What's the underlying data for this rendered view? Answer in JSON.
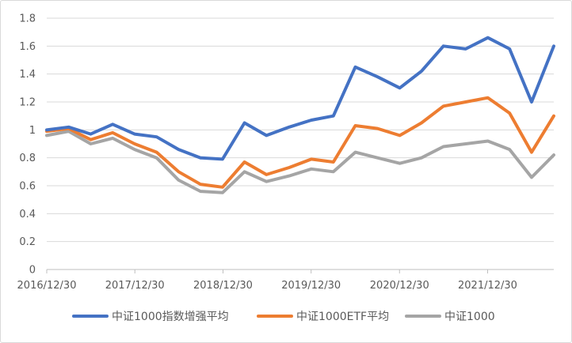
{
  "chart_data": {
    "type": "line",
    "title": "",
    "xlabel": "",
    "ylabel": "",
    "ylim": [
      0,
      1.8
    ],
    "yticks": [
      "0",
      "0.2",
      "0.4",
      "0.6",
      "0.8",
      "1",
      "1.2",
      "1.4",
      "1.6",
      "1.8"
    ],
    "xlim": [
      "2016-12-30",
      "2022-09-30"
    ],
    "xticks": [
      "2016/12/30",
      "2017/12/30",
      "2018/12/30",
      "2019/12/30",
      "2020/12/30",
      "2021/12/30"
    ],
    "grid": "horizontal",
    "legend_position": "bottom",
    "x": [
      "2016-12-30",
      "2017-03-31",
      "2017-06-30",
      "2017-09-29",
      "2017-12-29",
      "2018-03-30",
      "2018-06-29",
      "2018-09-28",
      "2018-12-28",
      "2019-03-29",
      "2019-06-28",
      "2019-09-30",
      "2019-12-31",
      "2020-03-31",
      "2020-06-30",
      "2020-09-30",
      "2020-12-31",
      "2021-03-31",
      "2021-06-30",
      "2021-09-30",
      "2021-12-31",
      "2022-03-31",
      "2022-06-30",
      "2022-09-30"
    ],
    "series": [
      {
        "name": "中证1000指数增强平均",
        "color": "#4472c4",
        "values": [
          1.0,
          1.02,
          0.97,
          1.04,
          0.97,
          0.95,
          0.86,
          0.8,
          0.79,
          1.05,
          0.96,
          1.02,
          1.07,
          1.1,
          1.45,
          1.38,
          1.3,
          1.42,
          1.6,
          1.58,
          1.66,
          1.58,
          1.2,
          1.6
        ]
      },
      {
        "name": "中证1000ETF平均",
        "color": "#ed7d31",
        "values": [
          0.99,
          1.01,
          0.93,
          0.98,
          0.9,
          0.84,
          0.7,
          0.61,
          0.59,
          0.77,
          0.68,
          0.73,
          0.79,
          0.77,
          1.03,
          1.01,
          0.96,
          1.05,
          1.17,
          1.2,
          1.23,
          1.12,
          0.84,
          1.1
        ]
      },
      {
        "name": "中证1000",
        "color": "#a5a5a5",
        "values": [
          0.96,
          0.99,
          0.9,
          0.94,
          0.86,
          0.8,
          0.64,
          0.56,
          0.55,
          0.7,
          0.63,
          0.67,
          0.72,
          0.7,
          0.84,
          0.8,
          0.76,
          0.8,
          0.88,
          0.9,
          0.92,
          0.86,
          0.66,
          0.82
        ]
      }
    ]
  }
}
